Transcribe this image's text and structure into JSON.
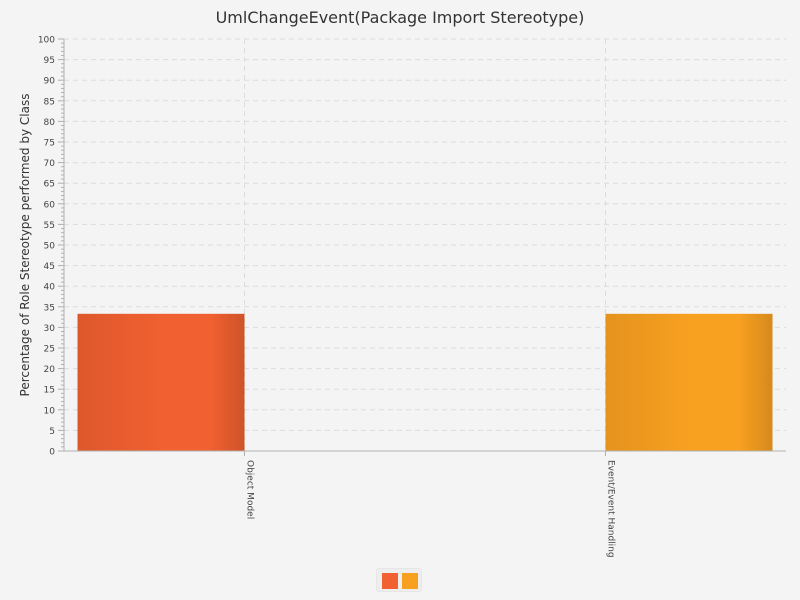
{
  "chart_data": {
    "type": "bar",
    "title": "UmlChangeEvent(Package Import Stereotype)",
    "xlabel": "",
    "ylabel": "Percentage of Role Stereotype performed by Class",
    "categories": [
      "Object Model",
      "Event/Event Handling"
    ],
    "series": [
      {
        "values": [
          33.3,
          0
        ],
        "color": "#f06030"
      },
      {
        "values": [
          0,
          33.3
        ],
        "color": "#f8a020"
      }
    ],
    "ylim": [
      0,
      100
    ],
    "yticks": [
      0,
      5,
      10,
      15,
      20,
      25,
      30,
      35,
      40,
      45,
      50,
      55,
      60,
      65,
      70,
      75,
      80,
      85,
      90,
      95,
      100
    ],
    "grid": true,
    "legend": "bottom-center"
  }
}
